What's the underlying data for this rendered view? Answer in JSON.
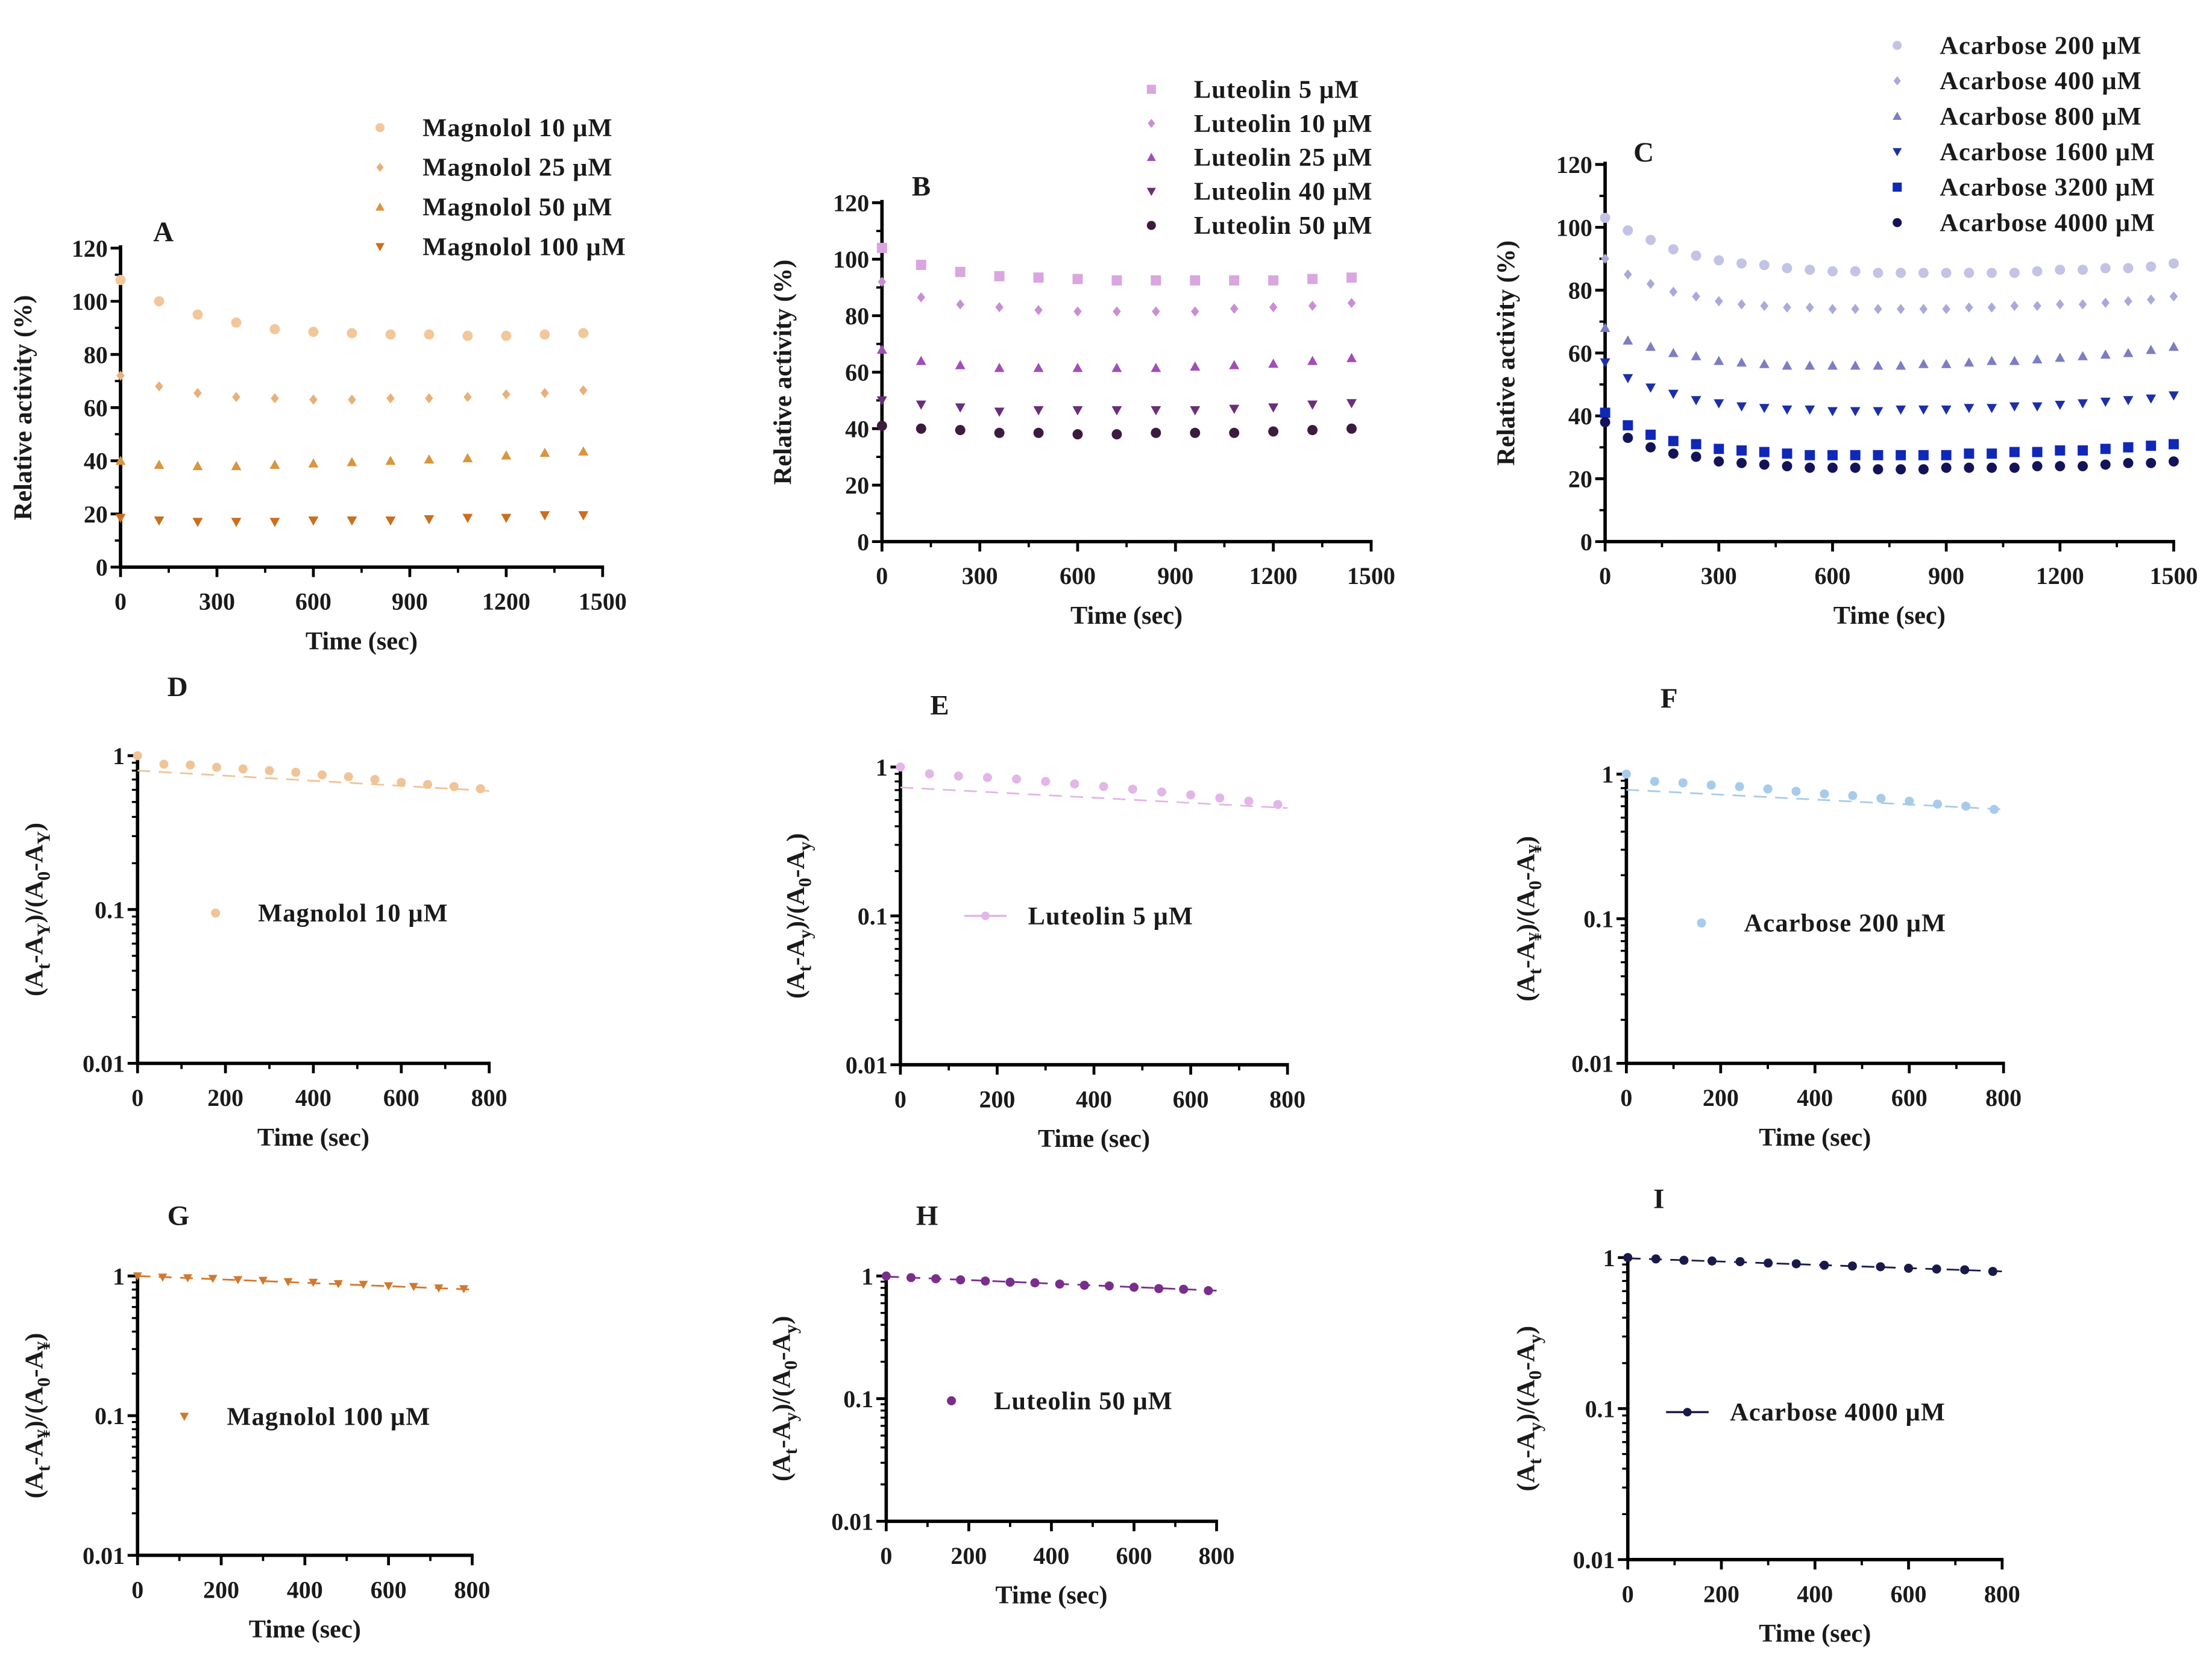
{
  "chart_data": [
    {
      "id": "A",
      "panel_label": "A",
      "type": "scatter",
      "xlabel": "Time (sec)",
      "ylabel": "Relative activity (%)",
      "xlim": [
        0,
        1500
      ],
      "ylim": [
        0,
        120
      ],
      "xticks": [
        0,
        300,
        600,
        900,
        1200,
        1500
      ],
      "yticks": [
        0,
        20,
        40,
        60,
        80,
        100,
        120
      ],
      "yscale": "linear",
      "legend": "top-right",
      "x": [
        0,
        120,
        240,
        360,
        480,
        600,
        720,
        840,
        960,
        1080,
        1200,
        1320,
        1440
      ],
      "series": [
        {
          "name": "Magnolol 10 μM",
          "marker": "circle",
          "color": "#f2c79a",
          "values": [
            108,
            100,
            95,
            92,
            89.5,
            88.5,
            88,
            87.5,
            87.5,
            87,
            87,
            87.5,
            88
          ]
        },
        {
          "name": "Magnolol 25 μM",
          "marker": "diamond",
          "color": "#e8b07a",
          "values": [
            72,
            68,
            65.5,
            64,
            63.5,
            63,
            63,
            63.5,
            63.5,
            64,
            65,
            65.5,
            66.5
          ]
        },
        {
          "name": "Magnolol 50 μM",
          "marker": "triangle-up",
          "color": "#d9953f",
          "values": [
            40,
            38.5,
            38,
            38,
            38.5,
            39,
            39.5,
            40,
            40.5,
            41,
            42,
            43,
            43.5
          ]
        },
        {
          "name": "Magnolol 100 μM",
          "marker": "triangle-down",
          "color": "#cc6e1f",
          "values": [
            18.5,
            17.5,
            17,
            17,
            17,
            17.5,
            17.5,
            17.5,
            18,
            18.5,
            18.5,
            19.5,
            19.5
          ]
        }
      ]
    },
    {
      "id": "B",
      "panel_label": "B",
      "type": "scatter",
      "xlabel": "Time (sec)",
      "ylabel": "Relative activity (%)",
      "xlim": [
        0,
        1500
      ],
      "ylim": [
        0,
        120
      ],
      "xticks": [
        0,
        300,
        600,
        900,
        1200,
        1500
      ],
      "yticks": [
        0,
        20,
        40,
        60,
        80,
        100,
        120
      ],
      "yscale": "linear",
      "legend": "top-right",
      "x": [
        0,
        120,
        240,
        360,
        480,
        600,
        720,
        840,
        960,
        1080,
        1200,
        1320,
        1440
      ],
      "series": [
        {
          "name": "Luteolin 5 μM",
          "marker": "square",
          "color": "#d9a6e0",
          "values": [
            104,
            98,
            95.5,
            94,
            93.5,
            93,
            92.5,
            92.5,
            92.5,
            92.5,
            92.5,
            93,
            93.5
          ]
        },
        {
          "name": "Luteolin 10 μM",
          "marker": "diamond",
          "color": "#c98fd3",
          "values": [
            92,
            86.5,
            84,
            83,
            82,
            81.5,
            81.5,
            81.5,
            81.5,
            82.5,
            83,
            83.5,
            84.5
          ]
        },
        {
          "name": "Luteolin 25 μM",
          "marker": "triangle-up",
          "color": "#a24db8",
          "values": [
            68,
            64,
            62.5,
            61.5,
            61.5,
            61.5,
            61.5,
            61.5,
            62,
            62.5,
            63,
            64,
            65
          ]
        },
        {
          "name": "Luteolin 40 μM",
          "marker": "triangle-down",
          "color": "#6b2e7a",
          "values": [
            50,
            48.5,
            47.5,
            46,
            46.5,
            46.5,
            46.5,
            46.5,
            46.5,
            47,
            47.5,
            48.5,
            49
          ]
        },
        {
          "name": "Luteolin 50 μM",
          "marker": "circle",
          "color": "#3d1a3f",
          "values": [
            41,
            40,
            39.5,
            38.5,
            38.5,
            38,
            38,
            38.5,
            38.5,
            38.5,
            39,
            39.5,
            40
          ]
        }
      ]
    },
    {
      "id": "C",
      "panel_label": "C",
      "type": "scatter",
      "xlabel": "Time (sec)",
      "ylabel": "Relative activity (%)",
      "xlim": [
        0,
        1500
      ],
      "ylim": [
        0,
        120
      ],
      "xticks": [
        0,
        300,
        600,
        900,
        1200,
        1500
      ],
      "yticks": [
        0,
        20,
        40,
        60,
        80,
        100,
        120
      ],
      "yscale": "linear",
      "legend": "top-right",
      "x": [
        0,
        60,
        120,
        180,
        240,
        300,
        360,
        420,
        480,
        540,
        600,
        660,
        720,
        780,
        840,
        900,
        960,
        1020,
        1080,
        1140,
        1200,
        1260,
        1320,
        1380,
        1440,
        1500
      ],
      "series": [
        {
          "name": "Acarbose 200 μM",
          "marker": "circle",
          "color": "#c3c3e6",
          "values": [
            103,
            99,
            96,
            93,
            91,
            89.5,
            88.5,
            88,
            87,
            86.5,
            86,
            86,
            85.5,
            85.5,
            85.5,
            85.5,
            85.5,
            85.5,
            85.5,
            86,
            86.5,
            86.5,
            87,
            87,
            87.5,
            88.5
          ]
        },
        {
          "name": "Acarbose 400 μM",
          "marker": "diamond",
          "color": "#a9a9da",
          "values": [
            90,
            85,
            82,
            79.5,
            78,
            76.5,
            75.5,
            75,
            74.5,
            74.5,
            74,
            74,
            74,
            74,
            74,
            74,
            74.5,
            74.5,
            75,
            75,
            75.5,
            75.5,
            76,
            76.5,
            77,
            78
          ]
        },
        {
          "name": "Acarbose 800 μM",
          "marker": "triangle-up",
          "color": "#7d7dc5",
          "values": [
            68,
            64,
            62,
            60,
            59,
            57.5,
            57,
            56.5,
            56,
            56,
            56,
            56,
            56,
            56,
            56.5,
            56.5,
            57,
            57.5,
            57.5,
            58,
            58.5,
            59,
            59.5,
            60,
            61,
            62
          ]
        },
        {
          "name": "Acarbose 1600 μM",
          "marker": "triangle-down",
          "color": "#1c2fa8",
          "values": [
            57,
            52,
            49,
            47,
            45,
            44,
            43,
            42.5,
            42,
            42,
            41.5,
            41.5,
            41.5,
            42,
            42,
            42,
            42.5,
            42.5,
            43,
            43,
            43.5,
            44,
            44.5,
            45,
            45.5,
            46.5
          ]
        },
        {
          "name": "Acarbose 3200 μM",
          "marker": "square",
          "color": "#1028b8",
          "values": [
            41,
            37,
            34,
            32,
            31,
            29.5,
            29,
            28.5,
            28,
            27.5,
            27.5,
            27.5,
            27.5,
            27.5,
            27.5,
            27.5,
            28,
            28,
            28.5,
            28.5,
            29,
            29,
            29.5,
            30,
            30.5,
            31
          ]
        },
        {
          "name": "Acarbose 4000 μM",
          "marker": "circle",
          "color": "#13135a",
          "values": [
            38,
            33,
            30,
            28,
            27,
            25.5,
            25,
            24.5,
            24,
            23.5,
            23.5,
            23.5,
            23,
            23,
            23,
            23.5,
            23.5,
            23.5,
            23.5,
            24,
            24,
            24,
            24.5,
            25,
            25,
            25.5
          ]
        }
      ]
    },
    {
      "id": "D",
      "panel_label": "D",
      "type": "scatter",
      "yscale": "log",
      "xlabel": "Time (sec)",
      "ylabel_parts": [
        "(A",
        "t",
        "-A",
        "Y",
        ")/(A",
        "0",
        "-A",
        "Y",
        ")"
      ],
      "xlim": [
        0,
        800
      ],
      "ylim": [
        0.01,
        1
      ],
      "xticks": [
        0,
        200,
        400,
        600,
        800
      ],
      "yticks": [
        0.01,
        0.1,
        1
      ],
      "ytick_labels": [
        "0.01",
        "0.1",
        "1"
      ],
      "legend": "center",
      "legend_style": "marker",
      "x": [
        0,
        60,
        120,
        180,
        240,
        300,
        360,
        420,
        480,
        540,
        600,
        660,
        720,
        780
      ],
      "series": [
        {
          "name": "Magnolol 10 μM",
          "marker": "circle",
          "color": "#f0c497",
          "values": [
            1.0,
            0.88,
            0.87,
            0.84,
            0.82,
            0.8,
            0.78,
            0.75,
            0.73,
            0.7,
            0.67,
            0.65,
            0.63,
            0.61
          ],
          "fit": [
            0.8,
            0.59
          ]
        }
      ]
    },
    {
      "id": "E",
      "panel_label": "E",
      "type": "scatter",
      "yscale": "log",
      "xlabel": "Time (sec)",
      "ylabel_parts": [
        "(A",
        "t",
        "-A",
        "y",
        ")/(A",
        "0",
        "-A",
        "y",
        ")"
      ],
      "xlim": [
        0,
        800
      ],
      "ylim": [
        0.01,
        1
      ],
      "xticks": [
        0,
        200,
        400,
        600,
        800
      ],
      "yticks": [
        0.01,
        0.1,
        1
      ],
      "ytick_labels": [
        "0.01",
        "0.1",
        "1"
      ],
      "legend": "center",
      "legend_style": "line",
      "x": [
        0,
        60,
        120,
        180,
        240,
        300,
        360,
        420,
        480,
        540,
        600,
        660,
        720,
        780
      ],
      "series": [
        {
          "name": "Luteolin 5 μM",
          "marker": "circle",
          "color": "#e3b6e8",
          "values": [
            1.0,
            0.9,
            0.87,
            0.85,
            0.83,
            0.8,
            0.77,
            0.74,
            0.71,
            0.68,
            0.65,
            0.62,
            0.59,
            0.56
          ],
          "fit": [
            0.73,
            0.53
          ]
        }
      ]
    },
    {
      "id": "F",
      "panel_label": "F",
      "type": "scatter",
      "yscale": "log",
      "xlabel": "Time (sec)",
      "ylabel_parts": [
        "(A",
        "t",
        "-A",
        "¥",
        ")/(A",
        "0",
        "-A",
        "¥",
        ")"
      ],
      "xlim": [
        0,
        800
      ],
      "ylim": [
        0.01,
        1
      ],
      "xticks": [
        0,
        200,
        400,
        600,
        800
      ],
      "yticks": [
        0.01,
        0.1,
        1
      ],
      "ytick_labels": [
        "0.01",
        "0.1",
        "1"
      ],
      "legend": "center",
      "legend_style": "marker",
      "x": [
        0,
        60,
        120,
        180,
        240,
        300,
        360,
        420,
        480,
        540,
        600,
        660,
        720,
        780
      ],
      "series": [
        {
          "name": "Acarbose 200 μM",
          "marker": "circle",
          "color": "#a8cbeb",
          "values": [
            1.0,
            0.89,
            0.87,
            0.84,
            0.82,
            0.79,
            0.76,
            0.73,
            0.71,
            0.68,
            0.65,
            0.62,
            0.6,
            0.57
          ],
          "fit": [
            0.78,
            0.57
          ]
        }
      ]
    },
    {
      "id": "G",
      "panel_label": "G",
      "type": "scatter",
      "yscale": "log",
      "xlabel": "Time (sec)",
      "ylabel_parts": [
        "(A",
        "t",
        "-A",
        "¥",
        ")/(A",
        "0",
        "-A",
        "¥",
        ")"
      ],
      "xlim": [
        0,
        800
      ],
      "ylim": [
        0.01,
        1
      ],
      "xticks": [
        0,
        200,
        400,
        600,
        800
      ],
      "yticks": [
        0.01,
        0.1,
        1
      ],
      "ytick_labels": [
        "0.01",
        "0.1",
        "1"
      ],
      "legend": "center",
      "legend_style": "marker",
      "x": [
        0,
        60,
        120,
        180,
        240,
        300,
        360,
        420,
        480,
        540,
        600,
        660,
        720,
        780
      ],
      "series": [
        {
          "name": "Magnolol 100 μM",
          "marker": "triangle-down",
          "color": "#d2782e",
          "values": [
            1.0,
            0.98,
            0.97,
            0.96,
            0.94,
            0.93,
            0.91,
            0.9,
            0.88,
            0.87,
            0.85,
            0.84,
            0.82,
            0.81
          ],
          "fit": [
            1.0,
            0.8
          ]
        }
      ]
    },
    {
      "id": "H",
      "panel_label": "H",
      "type": "scatter",
      "yscale": "log",
      "xlabel": "Time (sec)",
      "ylabel_parts": [
        "(A",
        "t",
        "-A",
        "y",
        ")/(A",
        "0",
        "-A",
        "y",
        ")"
      ],
      "xlim": [
        0,
        800
      ],
      "ylim": [
        0.01,
        1
      ],
      "xticks": [
        0,
        200,
        400,
        600,
        800
      ],
      "yticks": [
        0.01,
        0.1,
        1
      ],
      "ytick_labels": [
        "0.01",
        "0.1",
        "1"
      ],
      "legend": "center",
      "legend_style": "marker",
      "x": [
        0,
        60,
        120,
        180,
        240,
        300,
        360,
        420,
        480,
        540,
        600,
        660,
        720,
        780
      ],
      "series": [
        {
          "name": "Luteolin 50 μM",
          "marker": "circle",
          "color": "#7a2e8c",
          "values": [
            1.0,
            0.97,
            0.95,
            0.93,
            0.91,
            0.89,
            0.88,
            0.86,
            0.84,
            0.83,
            0.81,
            0.79,
            0.78,
            0.76
          ],
          "fit": [
            0.99,
            0.76
          ]
        }
      ]
    },
    {
      "id": "I",
      "panel_label": "I",
      "type": "scatter",
      "yscale": "log",
      "xlabel": "Time (sec)",
      "ylabel_parts": [
        "(A",
        "t",
        "-A",
        "y",
        ")/(A",
        "0",
        "-A",
        "y",
        ")"
      ],
      "xlim": [
        0,
        800
      ],
      "ylim": [
        0.01,
        1
      ],
      "xticks": [
        0,
        200,
        400,
        600,
        800
      ],
      "yticks": [
        0.01,
        0.1,
        1
      ],
      "ytick_labels": [
        "0.01",
        "0.1",
        "1"
      ],
      "legend": "center",
      "legend_style": "line",
      "x": [
        0,
        60,
        120,
        180,
        240,
        300,
        360,
        420,
        480,
        540,
        600,
        660,
        720,
        780
      ],
      "series": [
        {
          "name": "Acarbose 4000 μM",
          "marker": "circle",
          "color": "#1a1a4a",
          "values": [
            1.0,
            0.98,
            0.96,
            0.95,
            0.94,
            0.92,
            0.91,
            0.89,
            0.88,
            0.87,
            0.85,
            0.84,
            0.83,
            0.81
          ],
          "fit": [
            0.99,
            0.81
          ]
        }
      ]
    }
  ]
}
